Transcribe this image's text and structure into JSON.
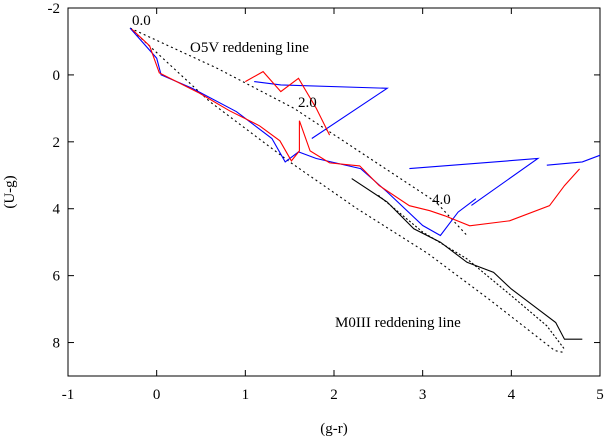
{
  "chart_data": {
    "type": "line",
    "xlabel": "(g-r)",
    "ylabel": "(U-g)",
    "xlim": [
      -1,
      5
    ],
    "ylim": [
      -2,
      9
    ],
    "y_reversed": true,
    "xticks": [
      -1,
      0,
      1,
      2,
      3,
      4,
      5
    ],
    "yticks": [
      -2,
      0,
      2,
      4,
      6,
      8
    ],
    "annotations": [
      "0.0",
      "O5V reddening line",
      "2.0",
      "4.0",
      "M0III reddening line"
    ],
    "series": [
      {
        "color": "#000000",
        "dash": "2,3",
        "x": [
          -0.3,
          0.68,
          1.55,
          2.35,
          3.15,
          3.5
        ],
        "y": [
          -1.4,
          -0.2,
          1.0,
          2.4,
          3.8,
          4.8
        ]
      },
      {
        "color": "#000000",
        "dash": "2,3",
        "x": [
          -0.3,
          0.6,
          1.5,
          2.26,
          3.06,
          3.77,
          4.49,
          4.6
        ],
        "y": [
          -1.4,
          0.8,
          2.6,
          4.0,
          5.34,
          6.75,
          8.24,
          8.3
        ]
      },
      {
        "color": "#000000",
        "dash": "2,2",
        "x": [
          2.5,
          3.0,
          3.5,
          4.0,
          4.4,
          4.6
        ],
        "y": [
          3.6,
          4.7,
          5.5,
          6.6,
          7.5,
          8.2
        ]
      },
      {
        "color": "#000000",
        "dash": "",
        "x": [
          2.2,
          2.6,
          2.9,
          3.2,
          3.5,
          3.8,
          4.0,
          4.3,
          4.5,
          4.6,
          4.8
        ],
        "y": [
          3.1,
          3.8,
          4.6,
          5.0,
          5.6,
          5.9,
          6.4,
          7.0,
          7.4,
          7.9,
          7.9
        ]
      },
      {
        "color": "#0000ff",
        "dash": "",
        "x": [
          -0.3,
          0.0,
          0.05,
          0.4,
          0.9,
          1.3,
          1.45,
          1.6,
          1.8,
          2.3,
          2.6,
          3.0,
          3.2,
          3.4,
          3.6
        ],
        "y": [
          -1.4,
          -0.5,
          0.0,
          0.4,
          1.1,
          1.9,
          2.6,
          2.3,
          2.5,
          2.8,
          3.5,
          4.5,
          4.8,
          4.1,
          3.7
        ]
      },
      {
        "color": "#0000ff",
        "dash": "",
        "x": [
          1.1,
          1.4,
          2.6,
          1.75
        ],
        "y": [
          0.2,
          0.3,
          0.4,
          1.9
        ]
      },
      {
        "color": "#0000ff",
        "dash": "",
        "x": [
          2.85,
          4.3,
          3.55
        ],
        "y": [
          2.8,
          2.5,
          3.9
        ]
      },
      {
        "color": "#0000ff",
        "dash": "",
        "x": [
          4.4,
          4.8,
          5.1
        ],
        "y": [
          2.7,
          2.6,
          2.3
        ]
      },
      {
        "color": "#ff0000",
        "dash": "",
        "x": [
          -0.28,
          -0.08,
          0.03,
          0.32,
          0.48,
          0.82,
          1.16,
          1.39,
          1.52,
          1.61,
          1.61,
          1.73,
          1.95,
          2.29,
          2.51,
          2.85,
          3.08,
          3.25,
          3.53,
          3.98,
          4.43,
          4.6,
          4.77
        ],
        "y": [
          -1.37,
          -0.87,
          -0.06,
          0.33,
          0.54,
          1.07,
          1.52,
          1.97,
          2.57,
          2.27,
          1.37,
          2.27,
          2.63,
          2.72,
          3.31,
          3.91,
          4.06,
          4.21,
          4.51,
          4.36,
          3.91,
          3.31,
          2.81
        ]
      },
      {
        "color": "#ff0000",
        "dash": "",
        "x": [
          1.0,
          1.2,
          1.4,
          1.6,
          1.8,
          1.95
        ],
        "y": [
          0.2,
          -0.1,
          0.5,
          0.1,
          1.0,
          1.8
        ]
      }
    ]
  }
}
